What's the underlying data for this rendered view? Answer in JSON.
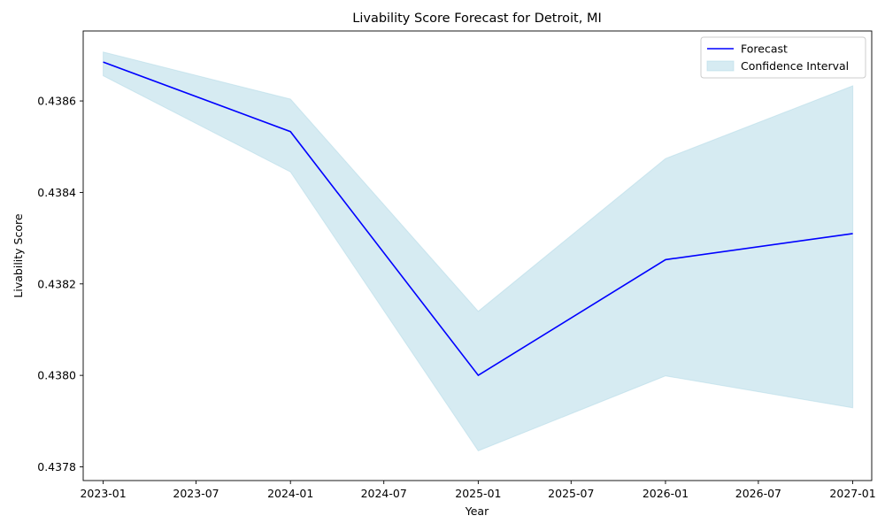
{
  "chart_data": {
    "type": "line",
    "title": "Livability Score Forecast for Detroit, MI",
    "xlabel": "Year",
    "ylabel": "Livability Score",
    "x": [
      "2023-01-01",
      "2024-01-01",
      "2025-01-01",
      "2026-01-01",
      "2027-01-01"
    ],
    "series": [
      {
        "name": "Forecast",
        "color": "#0000ff",
        "values": [
          0.438685,
          0.438533,
          0.438,
          0.438253,
          0.43831
        ]
      }
    ],
    "confidence_interval": {
      "name": "Confidence Interval",
      "color": "#add8e6",
      "lower": [
        0.438655,
        0.438445,
        0.437835,
        0.437999,
        0.437929
      ],
      "upper": [
        0.438707,
        0.438604,
        0.43814,
        0.438474,
        0.438633
      ]
    },
    "x_ticks": [
      "2023-01",
      "2023-07",
      "2024-01",
      "2024-07",
      "2025-01",
      "2025-07",
      "2026-01",
      "2026-07",
      "2027-01"
    ],
    "x_tick_dates": [
      "2023-01-01",
      "2023-07-01",
      "2024-01-01",
      "2024-07-01",
      "2025-01-01",
      "2025-07-01",
      "2026-01-01",
      "2026-07-01",
      "2027-01-01"
    ],
    "y_ticks": [
      "0.4378",
      "0.4380",
      "0.4382",
      "0.4384",
      "0.4386"
    ],
    "y_tick_values": [
      0.4378,
      0.438,
      0.4382,
      0.4384,
      0.4386
    ],
    "ylim": [
      0.43777,
      0.438753
    ],
    "xlim": [
      "2022-11-23",
      "2027-02-07"
    ],
    "grid": false,
    "legend_position": "top-right"
  }
}
